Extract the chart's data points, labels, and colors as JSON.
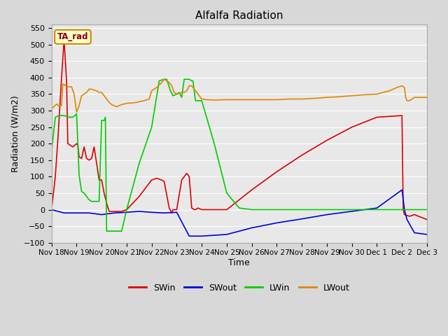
{
  "title": "Alfalfa Radiation",
  "xlabel": "Time",
  "ylabel": "Radiation (W/m2)",
  "ylim": [
    -100,
    560
  ],
  "yticks": [
    -100,
    -50,
    0,
    50,
    100,
    150,
    200,
    250,
    300,
    350,
    400,
    450,
    500,
    550
  ],
  "background_color": "#d8d8d8",
  "plot_bg_color": "#e8e8e8",
  "annotation_label": "TA_rad",
  "annotation_bg": "#ffffcc",
  "annotation_border": "#cc8800",
  "colors": {
    "SWin": "#dd0000",
    "SWout": "#0000dd",
    "LWin": "#00cc00",
    "LWout": "#dd8800"
  },
  "x_dates": [
    "Nov 18",
    "Nov 19",
    "Nov 20",
    "Nov 21",
    "Nov 22",
    "Nov 23",
    "Nov 24",
    "Nov 25",
    "Nov 26",
    "Nov 27",
    "Nov 28",
    "Nov 29",
    "Nov 30",
    "Dec 1",
    "Dec 2",
    "Dec 3"
  ],
  "SWin_x": [
    0,
    0.15,
    0.25,
    0.4,
    0.5,
    0.6,
    0.65,
    0.75,
    0.85,
    1.0,
    1.05,
    1.1,
    1.2,
    1.3,
    1.4,
    1.5,
    1.6,
    1.7,
    1.8,
    1.9,
    2.0,
    2.1,
    2.2,
    2.3,
    2.5,
    2.8,
    3.0,
    3.5,
    4.0,
    4.2,
    4.4,
    4.5,
    4.7,
    4.8,
    4.85,
    5.0,
    5.2,
    5.3,
    5.4,
    5.5,
    5.6,
    5.7,
    5.75,
    5.85,
    6.0,
    6.5,
    7.0,
    8.0,
    9.0,
    10.0,
    11.0,
    12.0,
    13.0,
    14.0,
    14.05,
    14.1,
    14.3,
    14.5,
    15.0
  ],
  "SWin_y": [
    0,
    100,
    210,
    400,
    515,
    390,
    200,
    195,
    190,
    200,
    195,
    160,
    155,
    190,
    155,
    150,
    155,
    190,
    140,
    90,
    90,
    50,
    20,
    -5,
    -5,
    -5,
    0,
    40,
    90,
    95,
    90,
    85,
    5,
    -10,
    0,
    0,
    90,
    100,
    110,
    100,
    5,
    0,
    0,
    5,
    0,
    0,
    0,
    60,
    115,
    165,
    210,
    250,
    280,
    285,
    0,
    -15,
    -20,
    -15,
    -30
  ],
  "SWout_x": [
    0,
    0.5,
    1.0,
    1.5,
    2.0,
    2.5,
    3.0,
    3.5,
    4.0,
    4.5,
    5.0,
    5.5,
    6.0,
    7.0,
    8.0,
    9.0,
    10.0,
    11.0,
    12.0,
    13.0,
    14.0,
    14.1,
    14.2,
    14.5,
    15.0
  ],
  "SWout_y": [
    0,
    -10,
    -10,
    -10,
    -15,
    -10,
    -8,
    -5,
    -8,
    -10,
    -8,
    -80,
    -80,
    -75,
    -55,
    -40,
    -28,
    -15,
    -5,
    5,
    60,
    0,
    -30,
    -70,
    -75
  ],
  "LWin_x": [
    0,
    0.15,
    0.3,
    0.5,
    0.7,
    0.85,
    1.0,
    1.05,
    1.1,
    1.2,
    1.3,
    1.4,
    1.5,
    1.6,
    1.7,
    1.8,
    1.9,
    2.0,
    2.1,
    2.15,
    2.2,
    2.3,
    2.5,
    2.8,
    3.0,
    3.5,
    4.0,
    4.3,
    4.5,
    4.6,
    4.75,
    4.85,
    5.0,
    5.1,
    5.2,
    5.3,
    5.4,
    5.5,
    5.6,
    5.65,
    5.75,
    6.0,
    6.5,
    7.0,
    7.5,
    8.0,
    14.0,
    14.5,
    15.0
  ],
  "LWin_y": [
    175,
    280,
    285,
    285,
    280,
    280,
    290,
    200,
    105,
    55,
    50,
    40,
    30,
    25,
    25,
    25,
    25,
    270,
    270,
    280,
    -65,
    -65,
    -65,
    -65,
    0,
    140,
    250,
    390,
    395,
    395,
    360,
    345,
    350,
    355,
    340,
    395,
    395,
    395,
    390,
    390,
    330,
    330,
    200,
    50,
    5,
    0,
    0,
    0,
    0
  ],
  "LWout_x": [
    0,
    0.1,
    0.2,
    0.3,
    0.4,
    0.45,
    0.5,
    0.55,
    0.6,
    0.7,
    0.8,
    0.9,
    1.0,
    1.1,
    1.2,
    1.3,
    1.4,
    1.5,
    1.6,
    1.7,
    1.8,
    1.9,
    2.0,
    2.1,
    2.2,
    2.3,
    2.4,
    2.5,
    2.6,
    2.7,
    2.8,
    2.9,
    3.0,
    3.2,
    3.4,
    3.5,
    3.7,
    3.9,
    4.0,
    4.2,
    4.4,
    4.5,
    4.6,
    4.7,
    4.8,
    4.85,
    4.9,
    5.0,
    5.1,
    5.2,
    5.3,
    5.4,
    5.5,
    5.6,
    5.7,
    5.8,
    5.9,
    6.0,
    6.2,
    6.5,
    7.0,
    7.5,
    8.0,
    8.5,
    9.0,
    9.5,
    10.0,
    10.5,
    11.0,
    11.5,
    12.0,
    12.5,
    13.0,
    13.5,
    13.8,
    14.0,
    14.1,
    14.15,
    14.2,
    14.3,
    14.4,
    14.5,
    14.6,
    14.7,
    14.8,
    14.9,
    15.0
  ],
  "LWout_y": [
    305,
    312,
    320,
    313,
    315,
    380,
    380,
    375,
    373,
    372,
    372,
    350,
    295,
    315,
    345,
    350,
    355,
    365,
    365,
    362,
    360,
    355,
    355,
    345,
    335,
    325,
    318,
    315,
    312,
    315,
    318,
    320,
    322,
    323,
    325,
    327,
    330,
    335,
    360,
    370,
    385,
    395,
    390,
    385,
    375,
    365,
    355,
    350,
    352,
    355,
    355,
    360,
    375,
    375,
    365,
    355,
    345,
    335,
    333,
    332,
    333,
    333,
    333,
    333,
    333,
    335,
    335,
    337,
    340,
    342,
    345,
    348,
    350,
    360,
    370,
    375,
    370,
    340,
    330,
    330,
    335,
    340,
    340,
    340,
    340,
    340,
    340
  ]
}
